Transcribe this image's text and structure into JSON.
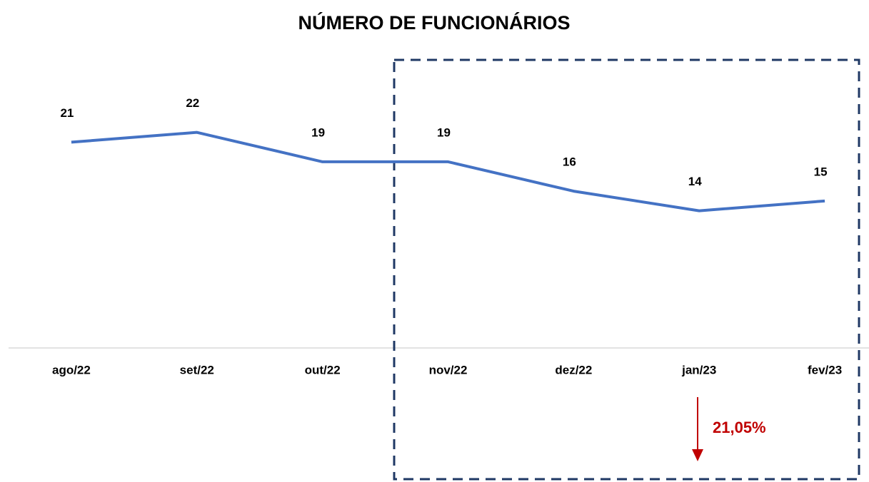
{
  "chart_data": {
    "type": "line",
    "title": "NÚMERO DE FUNCIONÁRIOS",
    "categories": [
      "ago/22",
      "set/22",
      "out/22",
      "nov/22",
      "dez/22",
      "jan/23",
      "fev/23"
    ],
    "series": [
      {
        "name": "Número de funcionários",
        "color": "#4472c4",
        "values": [
          21,
          22,
          19,
          19,
          16,
          14,
          15
        ]
      }
    ],
    "ylim": [
      0,
      35
    ],
    "annotation": "21,05%",
    "annotation_color": "#c00000",
    "highlight_color": "#1f3864"
  }
}
